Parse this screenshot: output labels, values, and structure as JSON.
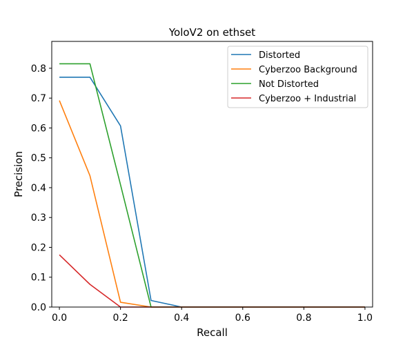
{
  "chart_data": {
    "type": "line",
    "title": "YoloV2 on ethset",
    "xlabel": "Recall",
    "ylabel": "Precision",
    "xlim": [
      -0.025,
      1.025
    ],
    "ylim": [
      0.0,
      0.89
    ],
    "xticks": [
      0.0,
      0.2,
      0.4,
      0.6,
      0.8,
      1.0
    ],
    "xtick_labels": [
      "0.0",
      "0.2",
      "0.4",
      "0.6",
      "0.8",
      "1.0"
    ],
    "yticks": [
      0.0,
      0.1,
      0.2,
      0.3,
      0.4,
      0.5,
      0.6,
      0.7,
      0.8
    ],
    "ytick_labels": [
      "0.0",
      "0.1",
      "0.2",
      "0.3",
      "0.4",
      "0.5",
      "0.6",
      "0.7",
      "0.8"
    ],
    "grid": false,
    "legend_position": "top-right",
    "x": [
      0.0,
      0.1,
      0.2,
      0.3,
      0.4,
      0.5,
      0.6,
      0.7,
      0.8,
      0.9,
      1.0
    ],
    "series": [
      {
        "name": "Distorted",
        "color": "#1f77b4",
        "values": [
          0.77,
          0.77,
          0.607,
          0.022,
          0.0,
          0.0,
          0.0,
          0.0,
          0.0,
          0.0,
          0.0
        ]
      },
      {
        "name": "Cyberzoo Background",
        "color": "#ff7f0e",
        "values": [
          0.692,
          0.44,
          0.016,
          0.0,
          0.0,
          0.0,
          0.0,
          0.0,
          0.0,
          0.0,
          0.0
        ]
      },
      {
        "name": "Not Distorted",
        "color": "#2ca02c",
        "values": [
          0.815,
          0.815,
          0.41,
          0.0,
          0.0,
          0.0,
          0.0,
          0.0,
          0.0,
          0.0,
          0.0
        ]
      },
      {
        "name": "Cyberzoo + Industrial",
        "color": "#d62728",
        "values": [
          0.175,
          0.076,
          0.0,
          0.0,
          0.0,
          0.0,
          0.0,
          0.0,
          0.0,
          0.0,
          0.0
        ]
      }
    ]
  }
}
